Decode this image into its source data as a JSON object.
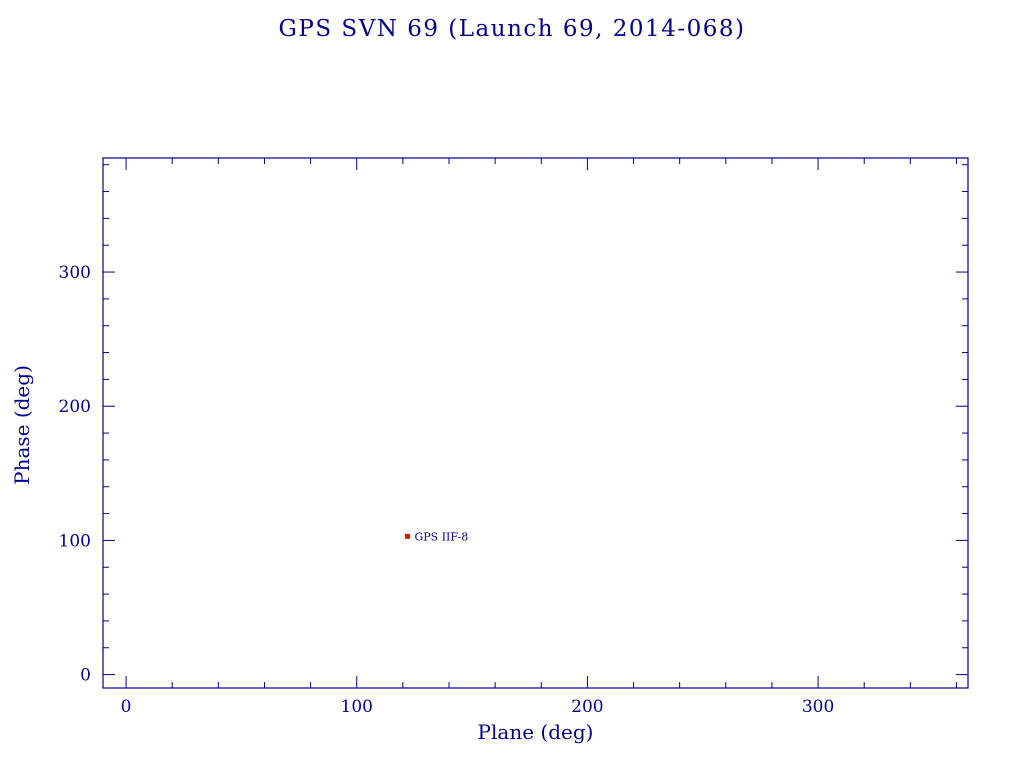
{
  "page": {
    "background": "#ffffff"
  },
  "chart_data": {
    "type": "scatter",
    "title": "GPS SVN 69 (Launch 69, 2014-068)",
    "xlabel": "Plane (deg)",
    "ylabel": "Phase (deg)",
    "xlim": [
      -10,
      365
    ],
    "ylim": [
      -10,
      385
    ],
    "xticks": [
      0,
      100,
      200,
      300
    ],
    "yticks": [
      0,
      100,
      200,
      300
    ],
    "x_minor_step": 20,
    "y_minor_step": 20,
    "grid": false,
    "legend": "none",
    "axis_color": "#00008b",
    "points": [
      {
        "x": 122,
        "y": 103,
        "label": "GPS IIF-8",
        "color": "#cc2200",
        "marker": "square"
      }
    ]
  }
}
